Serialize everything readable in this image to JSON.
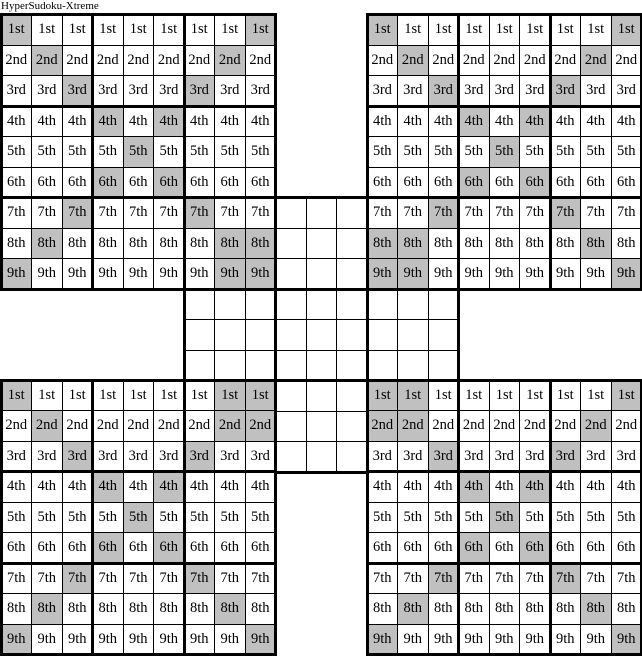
{
  "title": "HyperSudoku-Xtreme",
  "row_labels": [
    "1st",
    "2nd",
    "3rd",
    "4th",
    "5th",
    "6th",
    "7th",
    "8th",
    "9th"
  ],
  "shade_color": "#c0c0c0",
  "grids": [
    {
      "id": "top-left",
      "shaded": [
        [
          1,
          1
        ],
        [
          1,
          9
        ],
        [
          2,
          2
        ],
        [
          2,
          8
        ],
        [
          3,
          3
        ],
        [
          3,
          7
        ],
        [
          4,
          4
        ],
        [
          4,
          6
        ],
        [
          5,
          5
        ],
        [
          6,
          4
        ],
        [
          6,
          6
        ],
        [
          7,
          3
        ],
        [
          7,
          7
        ],
        [
          8,
          2
        ],
        [
          8,
          8
        ],
        [
          8,
          9
        ],
        [
          9,
          1
        ],
        [
          9,
          8
        ],
        [
          9,
          9
        ]
      ]
    },
    {
      "id": "top-right",
      "shaded": [
        [
          1,
          1
        ],
        [
          1,
          9
        ],
        [
          2,
          2
        ],
        [
          2,
          8
        ],
        [
          3,
          3
        ],
        [
          3,
          7
        ],
        [
          4,
          4
        ],
        [
          4,
          6
        ],
        [
          5,
          5
        ],
        [
          6,
          4
        ],
        [
          6,
          6
        ],
        [
          7,
          3
        ],
        [
          7,
          7
        ],
        [
          8,
          1
        ],
        [
          8,
          2
        ],
        [
          8,
          8
        ],
        [
          9,
          1
        ],
        [
          9,
          2
        ],
        [
          9,
          9
        ]
      ]
    },
    {
      "id": "bottom-left",
      "shaded": [
        [
          1,
          1
        ],
        [
          1,
          8
        ],
        [
          1,
          9
        ],
        [
          2,
          2
        ],
        [
          2,
          8
        ],
        [
          2,
          9
        ],
        [
          3,
          3
        ],
        [
          3,
          7
        ],
        [
          4,
          4
        ],
        [
          4,
          6
        ],
        [
          5,
          5
        ],
        [
          6,
          4
        ],
        [
          6,
          6
        ],
        [
          7,
          3
        ],
        [
          7,
          7
        ],
        [
          8,
          2
        ],
        [
          8,
          8
        ],
        [
          9,
          1
        ],
        [
          9,
          9
        ]
      ]
    },
    {
      "id": "bottom-right",
      "shaded": [
        [
          1,
          1
        ],
        [
          1,
          2
        ],
        [
          1,
          9
        ],
        [
          2,
          1
        ],
        [
          2,
          2
        ],
        [
          2,
          8
        ],
        [
          3,
          3
        ],
        [
          3,
          7
        ],
        [
          4,
          4
        ],
        [
          4,
          6
        ],
        [
          5,
          5
        ],
        [
          6,
          4
        ],
        [
          6,
          6
        ],
        [
          7,
          3
        ],
        [
          7,
          7
        ],
        [
          8,
          2
        ],
        [
          8,
          8
        ],
        [
          9,
          1
        ],
        [
          9,
          9
        ]
      ]
    }
  ]
}
